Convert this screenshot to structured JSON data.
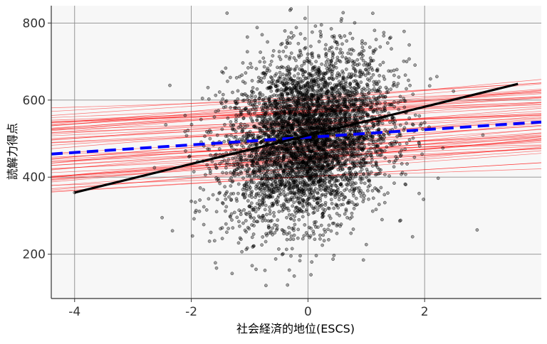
{
  "chart_data": {
    "type": "scatter",
    "xlabel": "社会経済的地位(ESCS)",
    "ylabel": "読解力得点",
    "xlim": [
      -4.4,
      4.0
    ],
    "ylim": [
      85,
      845
    ],
    "x_ticks": [
      -4,
      -2,
      0,
      2
    ],
    "y_ticks": [
      200,
      400,
      600,
      800
    ],
    "grid": true,
    "background": "#f7f7f7",
    "grid_color": "#8c8c8c",
    "scatter": {
      "approx_count": 4800,
      "x_center": 0.0,
      "x_sd": 0.7,
      "y_center": 500,
      "y_sd": 105,
      "color": "#000000",
      "opacity": 0.35,
      "sample_points": [
        {
          "x": -4.0,
          "y": 360
        },
        {
          "x": -2.5,
          "y": 295
        },
        {
          "x": -1.6,
          "y": 235
        },
        {
          "x": -1.3,
          "y": 150
        },
        {
          "x": -0.35,
          "y": 120
        },
        {
          "x": -0.05,
          "y": 812
        },
        {
          "x": 0.4,
          "y": 785
        },
        {
          "x": 1.3,
          "y": 775
        },
        {
          "x": 2.9,
          "y": 263
        },
        {
          "x": 1.0,
          "y": 225
        },
        {
          "x": 0.95,
          "y": 185
        },
        {
          "x": 2.1,
          "y": 655
        }
      ]
    },
    "overall_fit": {
      "color": "#000000",
      "x": [
        -4.0,
        3.6
      ],
      "y": [
        360,
        642
      ]
    },
    "mean_school_fit": {
      "color": "#0000ff",
      "style": "dashed",
      "x": [
        -4.4,
        4.0
      ],
      "y": [
        460,
        543
      ]
    },
    "school_fits": {
      "color": "#ff0000",
      "count": 60,
      "slope": 10,
      "intercept_range": [
        400,
        610
      ]
    }
  }
}
